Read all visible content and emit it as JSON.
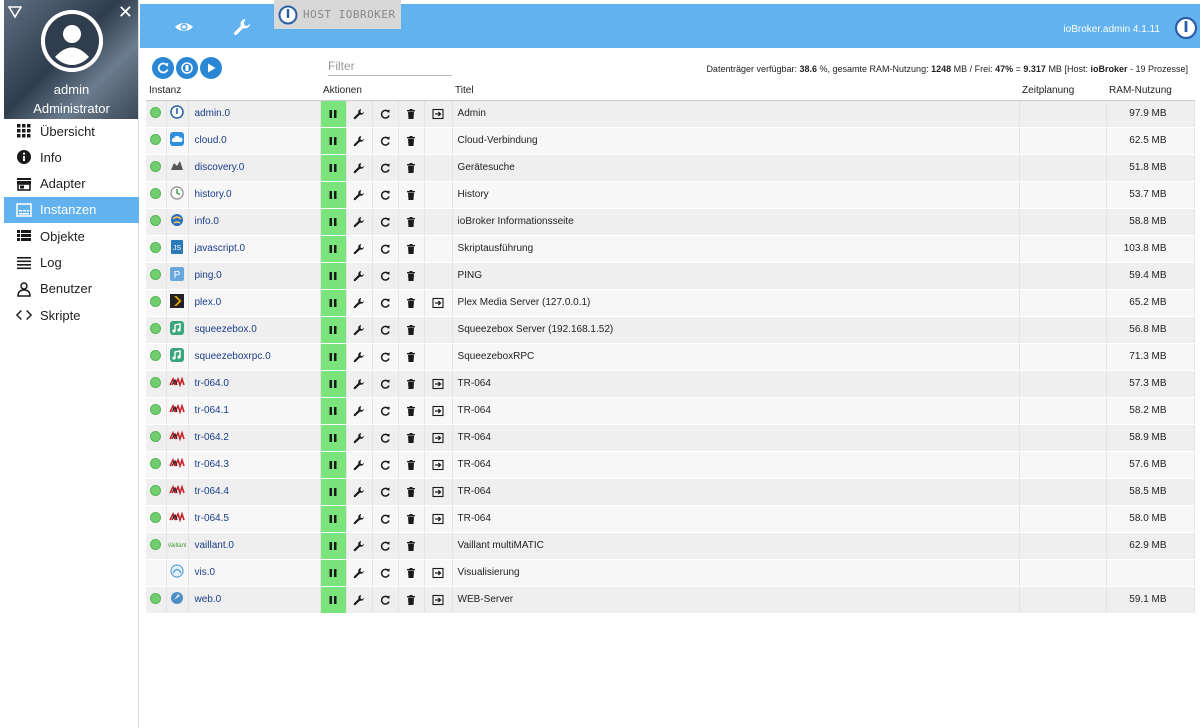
{
  "sidebar": {
    "user_name": "admin",
    "user_role": "Administrator",
    "items": [
      {
        "label": "Übersicht",
        "icon": "grid-icon"
      },
      {
        "label": "Info",
        "icon": "info-icon"
      },
      {
        "label": "Adapter",
        "icon": "store-icon"
      },
      {
        "label": "Instanzen",
        "icon": "instances-icon",
        "active": true
      },
      {
        "label": "Objekte",
        "icon": "list-icon"
      },
      {
        "label": "Log",
        "icon": "lines-icon"
      },
      {
        "label": "Benutzer",
        "icon": "user-icon"
      },
      {
        "label": "Skripte",
        "icon": "code-icon"
      }
    ]
  },
  "topbar": {
    "host_tab": "HOST IOBROKER",
    "version": "ioBroker.admin 4.1.11"
  },
  "toolbar": {
    "filter_placeholder": "Filter",
    "status": {
      "prefix": "Datenträger verfügbar: ",
      "disk": "38.6",
      "mid1": " %, gesamte RAM-Nutzung: ",
      "ram_total": "1248",
      "mid2": " MB / Frei: ",
      "free_pct": "47%",
      "mid3": " = ",
      "free_mb": "9.317",
      "mid4": " MB [Host: ",
      "host": "ioBroker",
      "suffix": " - 19 Prozesse]"
    }
  },
  "table": {
    "headers": {
      "instance": "Instanz",
      "actions": "Aktionen",
      "title": "Titel",
      "schedule": "Zeitplanung",
      "ram": "RAM-Nutzung"
    },
    "rows": [
      {
        "name": "admin.0",
        "title": "Admin",
        "ram": "97.9 MB",
        "status": true,
        "link": true,
        "icon": "iobroker-icon",
        "color": "#2a5fa8"
      },
      {
        "name": "cloud.0",
        "title": "Cloud-Verbindung",
        "ram": "62.5 MB",
        "status": true,
        "link": false,
        "icon": "cloud-icon",
        "color": "#2f8fdd"
      },
      {
        "name": "discovery.0",
        "title": "Gerätesuche",
        "ram": "51.8 MB",
        "status": true,
        "link": false,
        "icon": "discovery-icon",
        "color": "#555555"
      },
      {
        "name": "history.0",
        "title": "History",
        "ram": "53.7 MB",
        "status": true,
        "link": false,
        "icon": "history-icon",
        "color": "#3d9a5e"
      },
      {
        "name": "info.0",
        "title": "ioBroker Informationsseite",
        "ram": "58.8 MB",
        "status": true,
        "link": false,
        "icon": "info-globe-icon",
        "color": "#2a6fbf"
      },
      {
        "name": "javascript.0",
        "title": "Skriptausführung",
        "ram": "103.8 MB",
        "status": true,
        "link": false,
        "icon": "javascript-icon",
        "color": "#2a7ab8"
      },
      {
        "name": "ping.0",
        "title": "PING",
        "ram": "59.4 MB",
        "status": true,
        "link": false,
        "icon": "ping-icon",
        "color": "#6aa7de"
      },
      {
        "name": "plex.0",
        "title": "Plex Media Server (127.0.0.1)",
        "ram": "65.2 MB",
        "status": true,
        "link": true,
        "icon": "plex-icon",
        "color": "#222222"
      },
      {
        "name": "squeezebox.0",
        "title": "Squeezebox Server (192.168.1.52)",
        "ram": "56.8 MB",
        "status": true,
        "link": false,
        "icon": "squeezebox-icon",
        "color": "#3aa57c"
      },
      {
        "name": "squeezeboxrpc.0",
        "title": "SqueezeboxRPC",
        "ram": "71.3 MB",
        "status": true,
        "link": false,
        "icon": "squeezeboxrpc-icon",
        "color": "#3aa57c"
      },
      {
        "name": "tr-064.0",
        "title": "TR-064",
        "ram": "57.3 MB",
        "status": true,
        "link": true,
        "icon": "avm-icon",
        "color": "#c8202c"
      },
      {
        "name": "tr-064.1",
        "title": "TR-064",
        "ram": "58.2 MB",
        "status": true,
        "link": true,
        "icon": "avm-icon",
        "color": "#c8202c"
      },
      {
        "name": "tr-064.2",
        "title": "TR-064",
        "ram": "58.9 MB",
        "status": true,
        "link": true,
        "icon": "avm-icon",
        "color": "#c8202c"
      },
      {
        "name": "tr-064.3",
        "title": "TR-064",
        "ram": "57.6 MB",
        "status": true,
        "link": true,
        "icon": "avm-icon",
        "color": "#c8202c"
      },
      {
        "name": "tr-064.4",
        "title": "TR-064",
        "ram": "58.5 MB",
        "status": true,
        "link": true,
        "icon": "avm-icon",
        "color": "#c8202c"
      },
      {
        "name": "tr-064.5",
        "title": "TR-064",
        "ram": "58.0 MB",
        "status": true,
        "link": true,
        "icon": "avm-icon",
        "color": "#c8202c"
      },
      {
        "name": "vaillant.0",
        "title": "Vaillant multiMATIC",
        "ram": "62.9 MB",
        "status": true,
        "link": false,
        "icon": "vaillant-icon",
        "color": "#3c9e3c"
      },
      {
        "name": "vis.0",
        "title": "Visualisierung",
        "ram": "",
        "status": false,
        "link": true,
        "icon": "vis-icon",
        "color": "#5aa0d8"
      },
      {
        "name": "web.0",
        "title": "WEB-Server",
        "ram": "59.1 MB",
        "status": true,
        "link": true,
        "icon": "web-icon",
        "color": "#4a8fc8"
      }
    ]
  },
  "colors": {
    "accent": "#62b2f0",
    "button": "#2a87d6",
    "running": "#7be37b",
    "status_dot": "#6fcf6f"
  }
}
